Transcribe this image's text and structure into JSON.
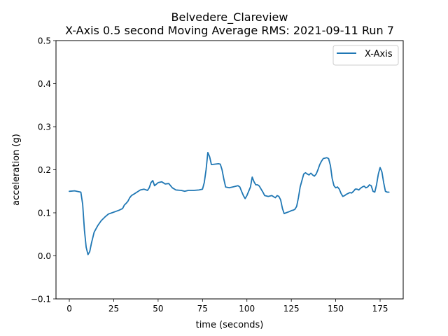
{
  "chart_data": {
    "type": "line",
    "title_line1": "Belvedere_Clareview",
    "title_line2": "X-Axis 0.5 second Moving Average RMS: 2021-09-11 Run 7",
    "xlabel": "time (seconds)",
    "ylabel": "acceleration (g)",
    "xlim": [
      -7.5,
      188
    ],
    "ylim": [
      -0.1,
      0.5
    ],
    "xticks": [
      0,
      25,
      50,
      75,
      100,
      125,
      150,
      175
    ],
    "yticks": [
      -0.1,
      0.0,
      0.1,
      0.2,
      0.3,
      0.4,
      0.5
    ],
    "xtick_labels": [
      "0",
      "25",
      "50",
      "75",
      "100",
      "125",
      "150",
      "175"
    ],
    "ytick_labels": [
      "−0.1",
      "0.0",
      "0.1",
      "0.2",
      "0.3",
      "0.4",
      "0.5"
    ],
    "grid": false,
    "legend_position": "top-right",
    "series": [
      {
        "name": "X-Axis",
        "color": "#1f77b4",
        "x": [
          0,
          3,
          6.5,
          7.5,
          8.5,
          9.5,
          10.5,
          11.5,
          12.5,
          14,
          16,
          18,
          20,
          22,
          24,
          26,
          28,
          30,
          31,
          32,
          33,
          34,
          35,
          37,
          40,
          42,
          44,
          45,
          46,
          47,
          48,
          50,
          52,
          54,
          56,
          58,
          60,
          63,
          65,
          67,
          70,
          73,
          75,
          76,
          77,
          78,
          79,
          80,
          82,
          84,
          85,
          86,
          87,
          88,
          90,
          92,
          94,
          95,
          96,
          97,
          98,
          99,
          100,
          102,
          103,
          104,
          105,
          106,
          107,
          108,
          109,
          110,
          112,
          114,
          116,
          117,
          118,
          119,
          120,
          121,
          122,
          124,
          125,
          126,
          127,
          128,
          129,
          130,
          132,
          133,
          134,
          135,
          136,
          137,
          138,
          139,
          140,
          141,
          142,
          143,
          144,
          145,
          146,
          147,
          148,
          149,
          150,
          151,
          152,
          153,
          154,
          155,
          156,
          157,
          158,
          159,
          160,
          161,
          162,
          163,
          164,
          165,
          166,
          167,
          168,
          169,
          170,
          171,
          172,
          173,
          174,
          175,
          176,
          177,
          178,
          179,
          180
        ],
        "y": [
          0.15,
          0.151,
          0.148,
          0.12,
          0.06,
          0.02,
          0.003,
          0.01,
          0.03,
          0.055,
          0.07,
          0.082,
          0.09,
          0.097,
          0.1,
          0.103,
          0.106,
          0.11,
          0.118,
          0.122,
          0.127,
          0.135,
          0.14,
          0.145,
          0.153,
          0.155,
          0.152,
          0.158,
          0.17,
          0.175,
          0.163,
          0.17,
          0.172,
          0.167,
          0.168,
          0.158,
          0.153,
          0.152,
          0.15,
          0.152,
          0.152,
          0.153,
          0.155,
          0.17,
          0.2,
          0.24,
          0.23,
          0.212,
          0.213,
          0.214,
          0.213,
          0.2,
          0.178,
          0.16,
          0.158,
          0.16,
          0.162,
          0.163,
          0.16,
          0.15,
          0.14,
          0.133,
          0.14,
          0.16,
          0.183,
          0.172,
          0.165,
          0.165,
          0.162,
          0.155,
          0.148,
          0.14,
          0.138,
          0.14,
          0.135,
          0.14,
          0.138,
          0.13,
          0.11,
          0.098,
          0.1,
          0.103,
          0.105,
          0.106,
          0.108,
          0.115,
          0.135,
          0.16,
          0.19,
          0.193,
          0.19,
          0.188,
          0.192,
          0.188,
          0.185,
          0.19,
          0.2,
          0.212,
          0.22,
          0.226,
          0.227,
          0.228,
          0.226,
          0.21,
          0.18,
          0.163,
          0.158,
          0.16,
          0.155,
          0.145,
          0.138,
          0.14,
          0.143,
          0.145,
          0.147,
          0.146,
          0.15,
          0.155,
          0.155,
          0.153,
          0.157,
          0.16,
          0.162,
          0.158,
          0.16,
          0.165,
          0.163,
          0.15,
          0.148,
          0.165,
          0.19,
          0.205,
          0.195,
          0.17,
          0.15,
          0.148,
          0.148
        ]
      }
    ]
  }
}
